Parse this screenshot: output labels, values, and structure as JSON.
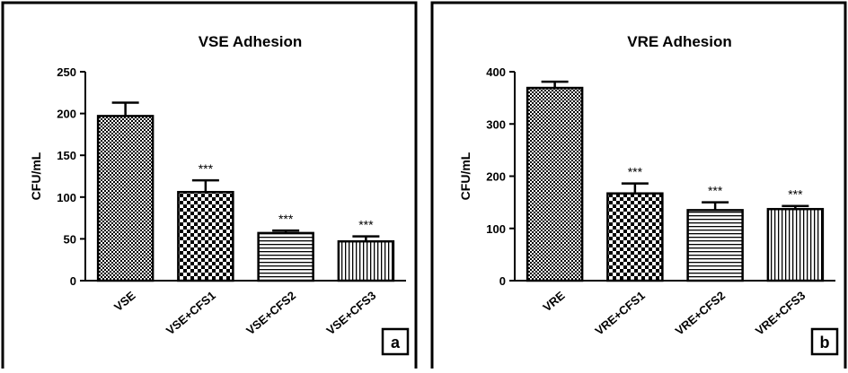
{
  "chart_data": [
    {
      "type": "bar",
      "title": "VSE Adhesion",
      "ylabel": "CFU/mL",
      "xlabel": "",
      "ylim": [
        0,
        250
      ],
      "yticks": [
        0,
        50,
        100,
        150,
        200,
        250
      ],
      "categories": [
        "VSE",
        "VSE+CFS1",
        "VSE+CFS2",
        "VSE+CFS3"
      ],
      "values": [
        197,
        106,
        57,
        47
      ],
      "errors": [
        16,
        14,
        3,
        6
      ],
      "significance": [
        "",
        "***",
        "***",
        "***"
      ],
      "patterns": [
        "dense-checker",
        "checker",
        "horizontal-lines",
        "vertical-lines"
      ],
      "panel_label": "a",
      "grid": false
    },
    {
      "type": "bar",
      "title": "VRE Adhesion",
      "ylabel": "CFU/mL",
      "xlabel": "",
      "ylim": [
        0,
        400
      ],
      "yticks": [
        0,
        100,
        200,
        300,
        400
      ],
      "categories": [
        "VRE",
        "VRE+CFS1",
        "VRE+CFS2",
        "VRE+CFS3"
      ],
      "values": [
        369,
        167,
        135,
        137
      ],
      "errors": [
        12,
        19,
        15,
        6
      ],
      "significance": [
        "",
        "***",
        "***",
        "***"
      ],
      "patterns": [
        "dense-checker",
        "checker",
        "horizontal-lines",
        "vertical-lines"
      ],
      "panel_label": "b",
      "grid": false
    }
  ]
}
